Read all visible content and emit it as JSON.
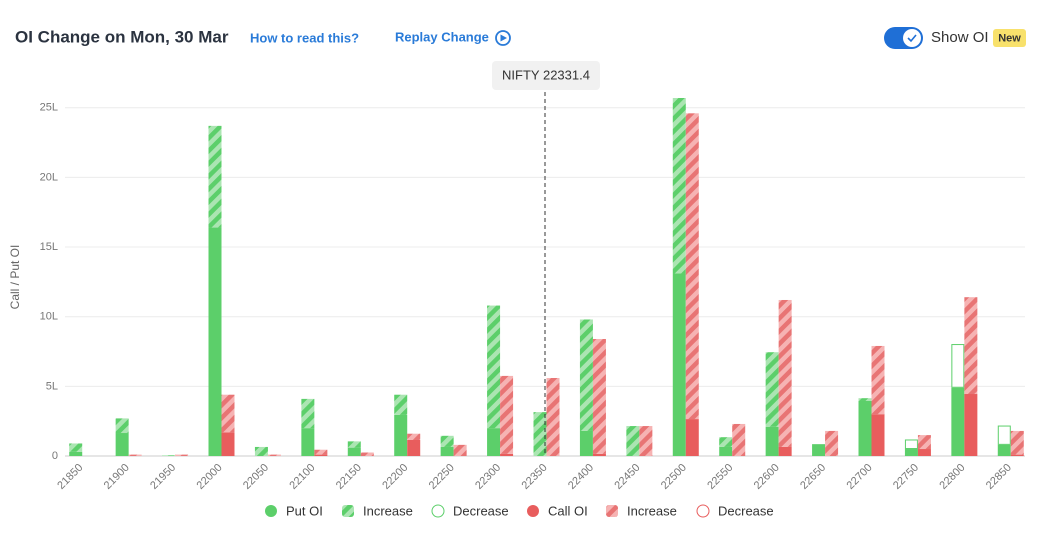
{
  "chart_data": {
    "type": "bar",
    "title": "OI Change on Mon, 30 Mar",
    "links": [
      "How to read this?",
      "Replay Change"
    ],
    "toggle_label": "Show OI",
    "badge": "New",
    "annotation": "NIFTY 22331.4",
    "y_label": "Call / Put OI",
    "categories": [
      "21850",
      "21900",
      "21950",
      "22000",
      "22050",
      "22100",
      "22150",
      "22200",
      "22250",
      "22300",
      "22350",
      "22400",
      "22450",
      "22500",
      "22550",
      "22600",
      "22650",
      "22700",
      "22750",
      "22800",
      "22850"
    ],
    "series": [
      {
        "name": "Put OI",
        "color": "#5ccf6a",
        "pattern": "solid",
        "values": [
          0.3,
          1.65,
          0,
          16.4,
          0,
          2.0,
          0.6,
          2.95,
          0.65,
          2.0,
          0,
          1.8,
          0,
          13.1,
          0.65,
          2.1,
          0.85,
          3.95,
          0.5,
          4.9,
          0.8
        ]
      },
      {
        "name": "Increase",
        "color": "#5ccf6a",
        "pattern": "hatched",
        "values": [
          0.6,
          1.05,
          0.05,
          7.3,
          0.65,
          2.1,
          0.45,
          1.45,
          0.8,
          8.8,
          3.15,
          8.0,
          2.15,
          12.6,
          0.7,
          5.35,
          0,
          0.2,
          0,
          0,
          0
        ]
      },
      {
        "name": "Decrease",
        "color": "#5ccf6a",
        "pattern": "outline",
        "values": [
          0,
          0,
          0,
          0,
          0,
          0,
          0,
          0,
          0,
          0,
          0,
          0,
          0,
          0,
          0,
          0,
          0,
          0,
          0.65,
          3.1,
          1.35
        ]
      },
      {
        "name": "Call OI",
        "color": "#e85d5d",
        "pattern": "solid",
        "values": [
          0,
          0,
          0,
          1.7,
          0,
          0.1,
          0,
          1.15,
          0,
          0.15,
          0,
          0.15,
          0,
          2.65,
          0,
          0.65,
          0,
          3.0,
          0.5,
          4.45,
          0.1
        ]
      },
      {
        "name": "Increase",
        "color": "#e85d5d",
        "pattern": "hatched",
        "values": [
          0,
          0.1,
          0.1,
          2.7,
          0.1,
          0.35,
          0.25,
          0.45,
          0.8,
          5.6,
          5.6,
          8.25,
          2.15,
          21.95,
          2.3,
          10.55,
          1.8,
          4.9,
          1.0,
          6.95,
          1.7
        ]
      },
      {
        "name": "Decrease",
        "color": "#e85d5d",
        "pattern": "outline",
        "values": [
          0,
          0,
          0,
          0,
          0,
          0,
          0,
          0,
          0,
          0,
          0,
          0,
          0,
          0,
          0,
          0,
          0,
          0,
          0,
          0,
          0
        ]
      }
    ],
    "ylim": [
      0,
      25.7
    ],
    "yticks": [
      0,
      {
        "value": 5,
        "label": "5L"
      },
      {
        "value": 10,
        "label": "10L"
      },
      {
        "value": 15,
        "label": "15L"
      },
      {
        "value": 20,
        "label": "20L"
      },
      {
        "value": 25,
        "label": "25L"
      }
    ],
    "grid": true
  }
}
